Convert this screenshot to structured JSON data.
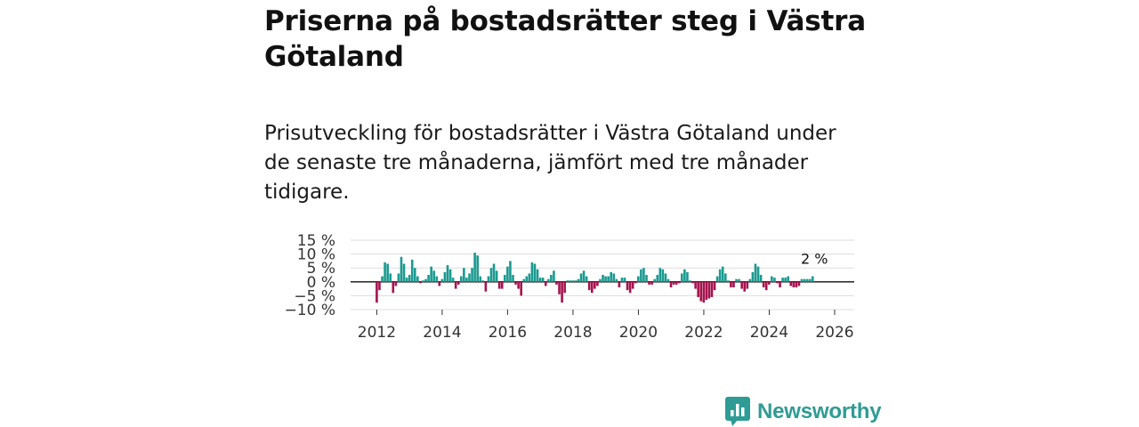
{
  "title": "Priserna på bostadsrätter steg i Västra Götaland",
  "subtitle": "Prisutveckling för bostadsrätter i Västra Götaland under de senaste tre månaderna, jämfört med tre månader tidigare.",
  "colors": {
    "positive": "#1a9a90",
    "negative": "#a5134e",
    "grid": "#dddddd",
    "zero": "#333333",
    "brand": "#2e9c94"
  },
  "brand": {
    "name": "Newsworthy",
    "icon": "newsworthy-logo-icon"
  },
  "chart_data": {
    "type": "bar",
    "title": "",
    "xlabel": "",
    "ylabel": "",
    "ylim": [
      -10,
      15
    ],
    "yticks": [
      -10,
      -5,
      0,
      5,
      10,
      15
    ],
    "ytick_labels": [
      "−10 %",
      "−5 %",
      "0 %",
      "5 %",
      "10 %",
      "15 %"
    ],
    "xlim": [
      2011.2,
      2026.6
    ],
    "xticks": [
      2012,
      2014,
      2016,
      2018,
      2020,
      2022,
      2024,
      2026
    ],
    "xtick_labels": [
      "2012",
      "2014",
      "2016",
      "2018",
      "2020",
      "2022",
      "2024",
      "2026"
    ],
    "start": 2012.0,
    "step": 0.0833,
    "values": [
      -7.5,
      -3.0,
      2.0,
      7.0,
      6.5,
      3.0,
      -4.0,
      -1.5,
      3.0,
      9.0,
      6.5,
      1.5,
      2.5,
      8.0,
      5.0,
      2.0,
      -0.5,
      0.5,
      1.0,
      2.5,
      5.5,
      4.0,
      2.0,
      -1.5,
      1.0,
      3.5,
      6.0,
      4.5,
      1.5,
      -2.5,
      -1.0,
      2.0,
      5.0,
      1.5,
      3.0,
      5.0,
      10.5,
      9.5,
      2.0,
      0.5,
      -3.5,
      2.0,
      5.0,
      6.5,
      4.0,
      -2.5,
      -2.5,
      2.5,
      5.5,
      7.5,
      2.5,
      -1.0,
      -2.5,
      -5.0,
      1.0,
      2.0,
      3.0,
      7.0,
      6.5,
      4.5,
      1.5,
      1.5,
      -1.5,
      1.0,
      2.5,
      4.0,
      -1.0,
      -4.5,
      -7.5,
      -4.0,
      0.5,
      0.5,
      0.5,
      0.5,
      1.0,
      3.0,
      4.0,
      2.0,
      -3.0,
      -4.0,
      -2.5,
      -1.5,
      1.0,
      2.5,
      2.0,
      2.0,
      3.5,
      3.0,
      1.0,
      -2.0,
      1.5,
      1.5,
      -3.0,
      -4.0,
      -2.5,
      -0.5,
      2.0,
      4.5,
      5.0,
      2.5,
      -1.0,
      -1.0,
      1.0,
      2.5,
      5.0,
      4.5,
      3.0,
      1.0,
      -2.0,
      -1.0,
      -1.0,
      -0.5,
      3.0,
      4.5,
      3.5,
      0.5,
      -0.5,
      -2.5,
      -5.5,
      -7.0,
      -7.5,
      -6.5,
      -6.0,
      -5.5,
      -3.0,
      2.0,
      4.5,
      5.5,
      3.0,
      0.5,
      -2.0,
      -2.0,
      1.0,
      1.0,
      -2.5,
      -3.5,
      -2.5,
      1.0,
      3.5,
      6.5,
      5.5,
      2.5,
      -2.0,
      -3.0,
      -1.0,
      2.0,
      1.5,
      -0.5,
      -2.0,
      1.5,
      1.5,
      2.0,
      -1.5,
      -2.0,
      -2.0,
      -1.5,
      1.0,
      1.0,
      1.0,
      1.0,
      2.0
    ],
    "last_label": "2 %"
  }
}
